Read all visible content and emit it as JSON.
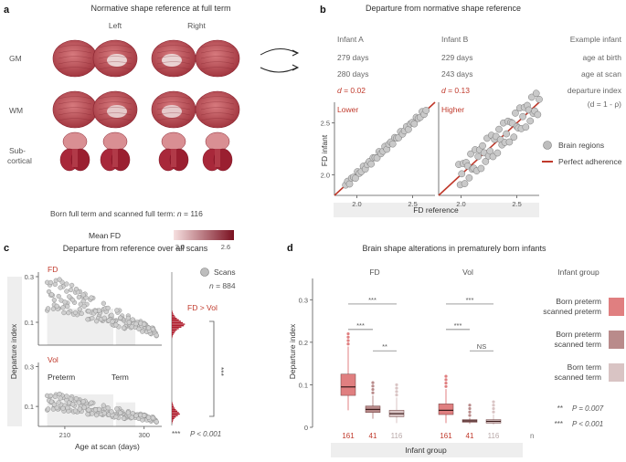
{
  "panels": {
    "a": "a",
    "b": "b",
    "c": "c",
    "d": "d"
  },
  "panel_a": {
    "title": "Normative shape reference at full term",
    "left": "Left",
    "right": "Right",
    "rows": [
      "GM",
      "WM",
      "Sub-",
      "cortical"
    ],
    "caption_prefix": "Born full term and scanned full term: ",
    "caption_n": "n",
    "caption_val": " = 116",
    "colorbar_label": "Mean FD",
    "colorbar_ticks": [
      "2.0",
      "2.6"
    ],
    "colors": {
      "light": "#f2d4d4",
      "dark": "#7a1020"
    }
  },
  "panel_b": {
    "title": "Departure from normative shape reference",
    "infantA": {
      "name": "Infant A",
      "birth": "279 days",
      "scan": "280 days",
      "d_sym": "d",
      "d_val": " = 0.02",
      "label": "Lower"
    },
    "infantB": {
      "name": "Infant B",
      "birth": "229 days",
      "scan": "243 days",
      "d_sym": "d",
      "d_val": " = 0.13",
      "label": "Higher"
    },
    "example": [
      "Example infant",
      "age at birth",
      "age at scan",
      "departure index",
      "(d = 1 - ρ)"
    ],
    "ylabel": "FD infant",
    "xlabel": "FD reference",
    "legend": [
      "Brain regions",
      "Perfect adherence"
    ]
  },
  "panel_c": {
    "title": "Departure from reference over all scans",
    "ylabel": "Departure index",
    "xlabel": "Age at scan (days)",
    "fd_label": "FD",
    "vol_label": "Vol",
    "preterm_label": "Preterm",
    "term_label": "Term",
    "legend_scans": "Scans",
    "legend_n": "n",
    "legend_nval": " = 884",
    "fd_vs_vol": "FD > Vol",
    "stars": "***",
    "pnote_stars": "***",
    "pnote": "P < 0.001"
  },
  "panel_d": {
    "title": "Brain shape alterations in prematurely born infants",
    "fd": "FD",
    "vol": "Vol",
    "infant_group_header": "Infant group",
    "ylabel": "Departure index",
    "xlabel": "Infant group",
    "n_label": "n",
    "counts": [
      "161",
      "41",
      "116",
      "161",
      "41",
      "116"
    ],
    "groups": [
      {
        "line1": "Born preterm",
        "line2": "scanned preterm",
        "color": "#e07f80"
      },
      {
        "line1": "Born preterm",
        "line2": "scanned term",
        "color": "#b98b8b"
      },
      {
        "line1": "Born term",
        "line2": "scanned term",
        "color": "#d9c4c4"
      }
    ],
    "sig": [
      "***",
      "***",
      "**",
      "***",
      "***",
      "NS"
    ],
    "pnotes": [
      {
        "stars": "**",
        "text": "P = 0.007"
      },
      {
        "stars": "***",
        "text": "P < 0.001"
      }
    ]
  },
  "chart_data": [
    {
      "type": "scatter",
      "title": "Departure from normative shape reference",
      "xlabel": "FD reference",
      "ylabel": "FD infant",
      "series": [
        {
          "name": "Infant A",
          "x": [
            1.9,
            2.0,
            2.1,
            2.15,
            2.2,
            2.25,
            2.3,
            2.35,
            2.4,
            2.45,
            2.5,
            2.55,
            2.6
          ],
          "y": [
            1.92,
            2.02,
            2.1,
            2.16,
            2.19,
            2.26,
            2.3,
            2.36,
            2.41,
            2.44,
            2.5,
            2.56,
            2.61
          ]
        },
        {
          "name": "Infant B",
          "x": [
            2.0,
            2.05,
            2.1,
            2.15,
            2.2,
            2.25,
            2.3,
            2.35,
            2.4,
            2.45,
            2.5,
            2.55,
            2.6
          ],
          "y": [
            1.9,
            2.05,
            2.0,
            2.2,
            2.1,
            2.3,
            2.2,
            2.4,
            2.35,
            2.5,
            2.45,
            2.6,
            2.5
          ]
        }
      ],
      "xlim": [
        1.8,
        2.7
      ],
      "ylim": [
        1.8,
        2.7
      ],
      "xticks": [
        "2.0",
        "2.5"
      ],
      "yticks": [
        "2.0",
        "2.5"
      ]
    },
    {
      "type": "scatter",
      "title": "Departure from reference over all scans",
      "xlabel": "Age at scan (days)",
      "ylabel": "Departure index",
      "xlim": [
        180,
        320
      ],
      "xticks": [
        "210",
        "300"
      ],
      "fd": {
        "ylim": [
          0,
          0.32
        ],
        "yticks": [
          "0.1",
          "0.3"
        ]
      },
      "vol": {
        "ylim": [
          0,
          0.32
        ],
        "yticks": [
          "0.1",
          "0.3"
        ]
      }
    },
    {
      "type": "bar",
      "title": "Brain shape alterations in prematurely born infants",
      "ylabel": "Departure index",
      "ylim": [
        0,
        0.35
      ],
      "yticks": [
        "0",
        "0.1",
        "0.2",
        "0.3"
      ],
      "series": [
        {
          "name": "FD",
          "medians": [
            0.095,
            0.042,
            0.032
          ],
          "q1": [
            0.075,
            0.035,
            0.025
          ],
          "q3": [
            0.125,
            0.05,
            0.04
          ],
          "wlo": [
            0.04,
            0.02,
            0.01
          ],
          "whi": [
            0.19,
            0.075,
            0.07
          ]
        },
        {
          "name": "Vol",
          "medians": [
            0.04,
            0.015,
            0.014
          ],
          "q1": [
            0.03,
            0.012,
            0.01
          ],
          "q3": [
            0.055,
            0.018,
            0.018
          ],
          "wlo": [
            0.01,
            0.008,
            0.006
          ],
          "whi": [
            0.09,
            0.022,
            0.03
          ]
        }
      ]
    }
  ]
}
